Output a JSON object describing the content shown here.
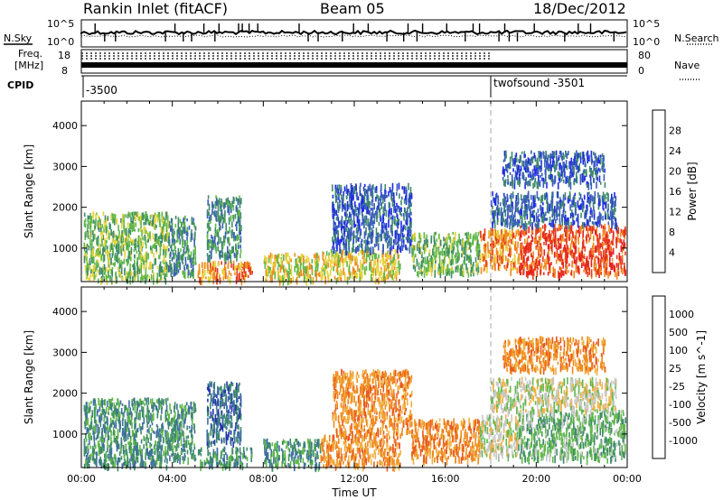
{
  "header": {
    "station": "Rankin Inlet (fitACF)",
    "beam": "Beam 05",
    "date": "18/Dec/2012"
  },
  "top_panels": {
    "nsky_label": "N.Sky",
    "nsearch_label": "N.Search",
    "noise_ticks": [
      "10^5",
      "10^0"
    ],
    "freq_label_line1": "Freq.",
    "freq_label_line2": "[MHz]",
    "freq_ticks": [
      "18",
      "8"
    ],
    "nave_label": "Nave",
    "nave_ticks": [
      "80",
      "0"
    ],
    "cpid_label": "CPID",
    "cpid_segments": [
      {
        "text": "-3500",
        "start_hour": 0
      },
      {
        "text": "twofsound -3501",
        "start_hour": 18
      }
    ]
  },
  "chart_data": [
    {
      "type": "heatmap",
      "title": "",
      "xlabel": "Time UT",
      "ylabel": "Slant Range [km]",
      "xlim": [
        0,
        24
      ],
      "ylim": [
        180,
        4600
      ],
      "x_tick_labels": [
        "00:00",
        "04:00",
        "08:00",
        "12:00",
        "16:00",
        "20:00",
        "00:00"
      ],
      "y_tick_labels": [
        "1000",
        "2000",
        "3000",
        "4000"
      ],
      "colorbar": {
        "label": "Power [dB]",
        "tick_labels": [
          "4",
          "8",
          "12",
          "16",
          "20",
          "24",
          "28"
        ],
        "colors": [
          "#1f2be6",
          "#3a5fb8",
          "#3f8a6a",
          "#5fb84a",
          "#e6d23a",
          "#f08a1e",
          "#e53a1e",
          "#e81e1e"
        ]
      },
      "echo_regions": [
        {
          "t": [
            0.1,
            3.8
          ],
          "r": [
            250,
            1900
          ],
          "level": 3
        },
        {
          "t": [
            3.8,
            5.0
          ],
          "r": [
            400,
            1800
          ],
          "level": 2
        },
        {
          "t": [
            5.1,
            7.5
          ],
          "r": [
            250,
            700
          ],
          "level": 5
        },
        {
          "t": [
            5.5,
            7.0
          ],
          "r": [
            800,
            2300
          ],
          "level": 2
        },
        {
          "t": [
            8.0,
            10.5
          ],
          "r": [
            250,
            900
          ],
          "level": 4
        },
        {
          "t": [
            10.5,
            14.0
          ],
          "r": [
            250,
            1000
          ],
          "level": 4
        },
        {
          "t": [
            11.0,
            14.5
          ],
          "r": [
            1000,
            2600
          ],
          "level": 1
        },
        {
          "t": [
            14.5,
            17.5
          ],
          "r": [
            400,
            1400
          ],
          "level": 3
        },
        {
          "t": [
            17.5,
            19.2
          ],
          "r": [
            500,
            1500
          ],
          "level": 5
        },
        {
          "t": [
            19.2,
            23.9
          ],
          "r": [
            400,
            1600
          ],
          "level": 6
        },
        {
          "t": [
            18.0,
            23.5
          ],
          "r": [
            1600,
            2400
          ],
          "level": 1
        },
        {
          "t": [
            18.5,
            23.0
          ],
          "r": [
            2600,
            3400
          ],
          "level": 1
        }
      ]
    },
    {
      "type": "heatmap",
      "title": "",
      "xlabel": "Time UT",
      "ylabel": "Slant Range [km]",
      "xlim": [
        0,
        24
      ],
      "ylim": [
        180,
        4600
      ],
      "x_tick_labels": [
        "00:00",
        "04:00",
        "08:00",
        "12:00",
        "16:00",
        "20:00",
        "00:00"
      ],
      "y_tick_labels": [
        "1000",
        "2000",
        "3000",
        "4000"
      ],
      "colorbar": {
        "label": "Velocity [m s^-1]",
        "tick_labels": [
          "1000",
          "500",
          "100",
          "25",
          "-25",
          "-100",
          "-500",
          "-1000"
        ],
        "colors": [
          "#2233aa",
          "#3f6fa0",
          "#3f8a6a",
          "#5fb84a",
          "#c8c8c8",
          "#f0b040",
          "#f08a1e",
          "#e85a1e",
          "#e81e1e"
        ]
      },
      "echo_regions": [
        {
          "t": [
            0.1,
            3.8
          ],
          "r": [
            250,
            1900
          ],
          "level": 2
        },
        {
          "t": [
            3.8,
            5.0
          ],
          "r": [
            400,
            1800
          ],
          "level": 2
        },
        {
          "t": [
            5.1,
            7.5
          ],
          "r": [
            250,
            700
          ],
          "level": 2
        },
        {
          "t": [
            5.5,
            7.0
          ],
          "r": [
            800,
            2300
          ],
          "level": 1
        },
        {
          "t": [
            8.0,
            10.5
          ],
          "r": [
            250,
            900
          ],
          "level": 2
        },
        {
          "t": [
            10.5,
            14.0
          ],
          "r": [
            250,
            1000
          ],
          "level": 6
        },
        {
          "t": [
            11.0,
            14.5
          ],
          "r": [
            1000,
            2600
          ],
          "level": 6
        },
        {
          "t": [
            14.5,
            17.5
          ],
          "r": [
            400,
            1400
          ],
          "level": 6
        },
        {
          "t": [
            17.5,
            19.2
          ],
          "r": [
            500,
            1500
          ],
          "level": 4
        },
        {
          "t": [
            19.2,
            23.9
          ],
          "r": [
            400,
            1600
          ],
          "level": 3
        },
        {
          "t": [
            18.0,
            23.5
          ],
          "r": [
            1600,
            2400
          ],
          "level": 4
        },
        {
          "t": [
            18.5,
            23.0
          ],
          "r": [
            2600,
            3400
          ],
          "level": 6
        }
      ]
    }
  ]
}
